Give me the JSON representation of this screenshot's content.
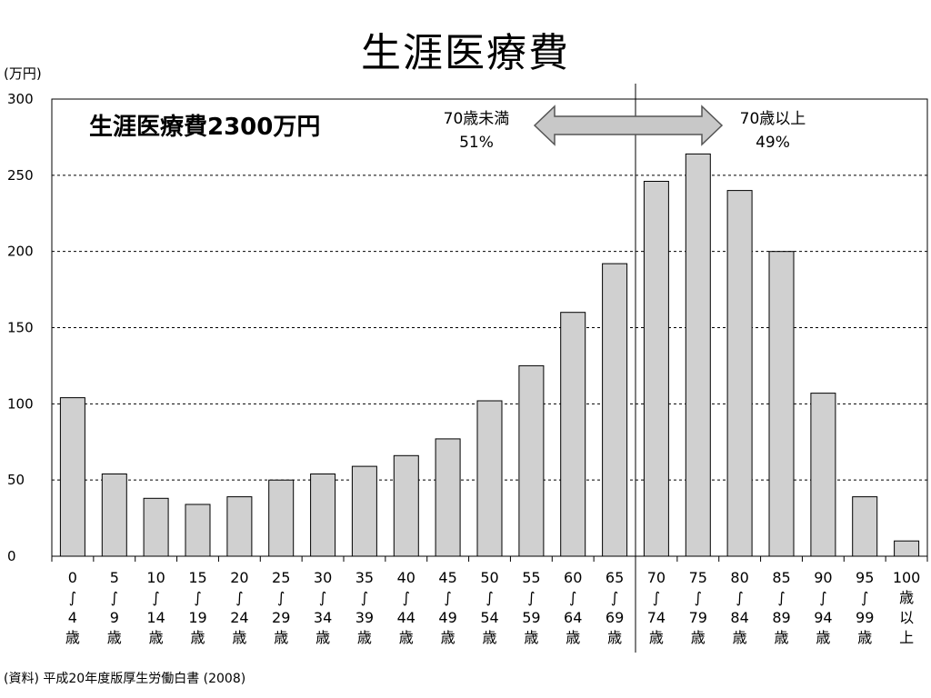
{
  "page": {
    "title": "生涯医療費",
    "unit_label": "(万円)",
    "source": "(資料) 平成20年度版厚生労働白書 (2008)"
  },
  "chart_data": {
    "type": "bar",
    "title": "生涯医療費",
    "ylabel": "(万円)",
    "xlabel": "",
    "ylim": [
      0,
      300
    ],
    "yticks": [
      0,
      50,
      100,
      150,
      200,
      250,
      300
    ],
    "grid": "horizontal-dashed",
    "bar_color": "#d0d0d0",
    "categories": [
      [
        "0",
        "∫",
        "4",
        "歳"
      ],
      [
        "5",
        "∫",
        "9",
        "歳"
      ],
      [
        "10",
        "∫",
        "14",
        "歳"
      ],
      [
        "15",
        "∫",
        "19",
        "歳"
      ],
      [
        "20",
        "∫",
        "24",
        "歳"
      ],
      [
        "25",
        "∫",
        "29",
        "歳"
      ],
      [
        "30",
        "∫",
        "34",
        "歳"
      ],
      [
        "35",
        "∫",
        "39",
        "歳"
      ],
      [
        "40",
        "∫",
        "44",
        "歳"
      ],
      [
        "45",
        "∫",
        "49",
        "歳"
      ],
      [
        "50",
        "∫",
        "54",
        "歳"
      ],
      [
        "55",
        "∫",
        "59",
        "歳"
      ],
      [
        "60",
        "∫",
        "64",
        "歳"
      ],
      [
        "65",
        "∫",
        "69",
        "歳"
      ],
      [
        "70",
        "∫",
        "74",
        "歳"
      ],
      [
        "75",
        "∫",
        "79",
        "歳"
      ],
      [
        "80",
        "∫",
        "84",
        "歳"
      ],
      [
        "85",
        "∫",
        "89",
        "歳"
      ],
      [
        "90",
        "∫",
        "94",
        "歳"
      ],
      [
        "95",
        "∫",
        "99",
        "歳"
      ],
      [
        "100",
        "歳",
        "以",
        "上"
      ]
    ],
    "values": [
      104,
      54,
      38,
      34,
      39,
      50,
      54,
      59,
      66,
      77,
      102,
      125,
      160,
      192,
      246,
      264,
      240,
      200,
      107,
      39,
      10
    ],
    "annotations": {
      "total": "生涯医療費2300万円",
      "under70_label": "70歳未満",
      "under70_pct": "51%",
      "over70_label": "70歳以上",
      "over70_pct": "49%"
    }
  }
}
